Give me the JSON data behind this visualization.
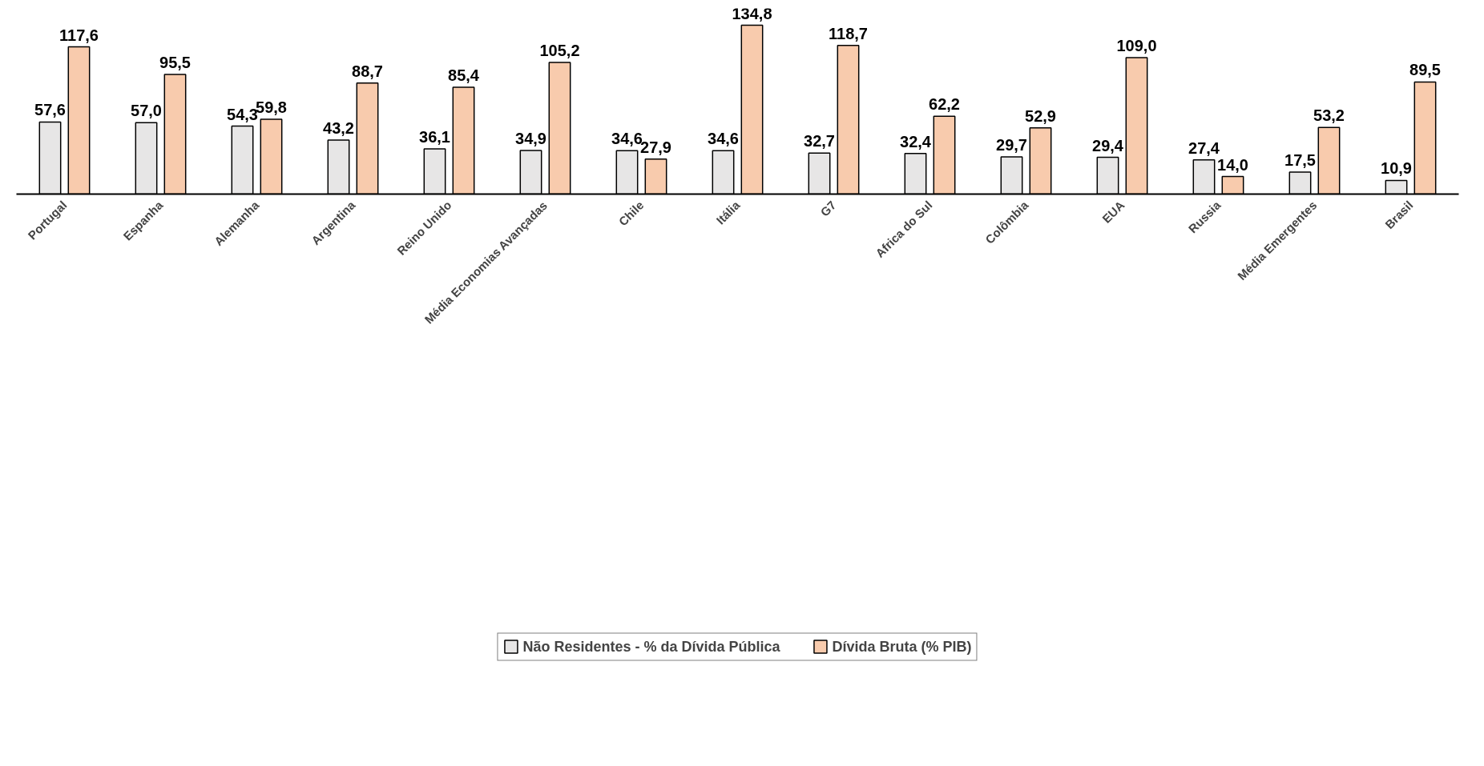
{
  "chart_data": {
    "type": "bar",
    "categories": [
      "Portugal",
      "Espanha",
      "Alemanha",
      "Argentina",
      "Reino Unido",
      "Média Economias Avançadas",
      "Chile",
      "Itália",
      "G7",
      "Africa do Sul",
      "Colômbia",
      "EUA",
      "Russia",
      "Média Emergentes",
      "Brasil"
    ],
    "legend": "bottom",
    "grid": false,
    "series": [
      {
        "name": "Não Residentes - % da Dívida Pública",
        "color": "#e7e6e6",
        "values": [
          57.6,
          57.0,
          54.3,
          43.2,
          36.1,
          34.9,
          34.6,
          34.6,
          32.7,
          32.4,
          29.7,
          29.4,
          27.4,
          17.5,
          10.9
        ],
        "value_labels": [
          "57,6",
          "57,0",
          "54,3",
          "43,2",
          "36,1",
          "34,9",
          "34,6",
          "34,6",
          "32,7",
          "32,4",
          "29,7",
          "29,4",
          "27,4",
          "17,5",
          "10,9"
        ]
      },
      {
        "name": "Dívida Bruta (% PIB)",
        "color": "#f8cbad",
        "values": [
          117.6,
          95.5,
          59.8,
          88.7,
          85.4,
          105.2,
          27.9,
          134.8,
          118.7,
          62.2,
          52.9,
          109.0,
          14.0,
          53.2,
          89.5
        ],
        "value_labels": [
          "117,6",
          "95,5",
          "59,8",
          "88,7",
          "85,4",
          "105,2",
          "27,9",
          "134,8",
          "118,7",
          "62,2",
          "52,9",
          "109,0",
          "14,0",
          "53,2",
          "89,5"
        ]
      }
    ]
  }
}
